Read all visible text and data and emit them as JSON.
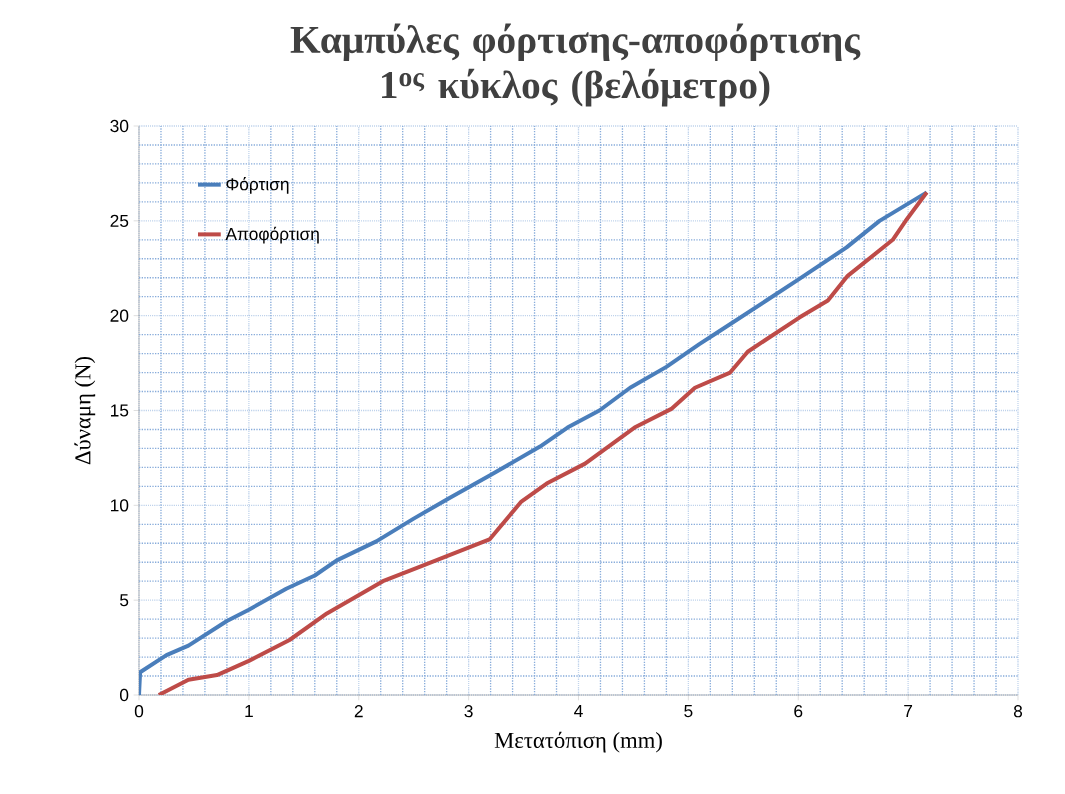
{
  "chart_data": {
    "type": "line",
    "title": "Καμπύλες φόρτισης-αποφόρτισης 1$^{ος}$ κύκλος (βελόμετρο)",
    "xlabel": "Μετατόπιση (mm)",
    "ylabel": "Δύναμη (N)",
    "xlim": [
      0,
      8
    ],
    "ylim": [
      0,
      30
    ],
    "xticks": [
      0,
      {
        "value": 0.2,
        "label": null
      },
      {
        "value": 0.4,
        "label": null
      },
      {
        "value": 0.6,
        "label": null
      },
      {
        "value": 0.8,
        "label": null
      },
      1,
      {
        "value": 1.2,
        "label": null
      },
      {
        "value": 1.4,
        "label": null
      },
      {
        "value": 1.6,
        "label": null
      },
      {
        "value": 1.8,
        "label": null
      },
      2,
      {
        "value": 2.2,
        "label": null
      },
      {
        "value": 2.4,
        "label": null
      },
      {
        "value": 2.6,
        "label": null
      },
      {
        "value": 2.8,
        "label": null
      },
      3,
      {
        "value": 3.2,
        "label": null
      },
      {
        "value": 3.4,
        "label": null
      },
      {
        "value": 3.6,
        "label": null
      },
      {
        "value": 3.8,
        "label": null
      },
      4,
      {
        "value": 4.2,
        "label": null
      },
      {
        "value": 4.4,
        "label": null
      },
      {
        "value": 4.6,
        "label": null
      },
      {
        "value": 4.8,
        "label": null
      },
      5,
      {
        "value": 5.2,
        "label": null
      },
      {
        "value": 5.4,
        "label": null
      },
      {
        "value": 5.6,
        "label": null
      },
      {
        "value": 5.8,
        "label": null
      },
      6,
      {
        "value": 6.2,
        "label": null
      },
      {
        "value": 6.4,
        "label": null
      },
      {
        "value": 6.6,
        "label": null
      },
      {
        "value": 6.8,
        "label": null
      },
      7,
      {
        "value": 7.2,
        "label": null
      },
      {
        "value": 7.4,
        "label": null
      },
      {
        "value": 7.6,
        "label": null
      },
      {
        "value": 7.8,
        "label": null
      },
      8
    ],
    "yticks": [
      0,
      {
        "value": 1,
        "label": null
      },
      {
        "value": 2,
        "label": null
      },
      {
        "value": 3,
        "label": null
      },
      {
        "value": 4,
        "label": null
      },
      5,
      {
        "value": 6,
        "label": null
      },
      {
        "value": 7,
        "label": null
      },
      {
        "value": 8,
        "label": null
      },
      {
        "value": 9,
        "label": null
      },
      10,
      {
        "value": 11,
        "label": null
      },
      {
        "value": 12,
        "label": null
      },
      {
        "value": 13,
        "label": null
      },
      {
        "value": 14,
        "label": null
      },
      15,
      {
        "value": 16,
        "label": null
      },
      {
        "value": 17,
        "label": null
      },
      {
        "value": 18,
        "label": null
      },
      {
        "value": 19,
        "label": null
      },
      20,
      {
        "value": 21,
        "label": null
      },
      {
        "value": 22,
        "label": null
      },
      {
        "value": 23,
        "label": null
      },
      {
        "value": 24,
        "label": null
      },
      25,
      {
        "value": 26,
        "label": null
      },
      {
        "value": 27,
        "label": null
      },
      {
        "value": 28,
        "label": null
      },
      {
        "value": 29,
        "label": null
      },
      30
    ],
    "grid": true,
    "legend": "top left",
    "marker": "none",
    "line_style": "solid",
    "series": [
      {
        "name": "Φόρτιση",
        "color": "#4a7ebb",
        "x": [
          0,
          0.01,
          0.25,
          0.45,
          0.8,
          1.0,
          1.34,
          1.6,
          1.8,
          2.16,
          2.5,
          2.83,
          3.2,
          3.65,
          3.9,
          4.19,
          4.47,
          4.8,
          5.1,
          5.26,
          5.71,
          6.0,
          6.44,
          6.74,
          7.17
        ],
        "values": [
          0,
          1.2,
          2.1,
          2.6,
          3.9,
          4.5,
          5.6,
          6.3,
          7.1,
          8.1,
          9.3,
          10.4,
          11.6,
          13.1,
          14.1,
          15.0,
          16.2,
          17.3,
          18.5,
          19.1,
          20.8,
          21.9,
          23.6,
          25.0,
          26.5
        ]
      },
      {
        "name": "Αποφόρτιση",
        "color": "#be4b48",
        "x": [
          0.18,
          0.45,
          0.71,
          1.0,
          1.37,
          1.71,
          2.22,
          2.53,
          3.19,
          3.48,
          3.71,
          4.06,
          4.51,
          4.85,
          5.06,
          5.38,
          5.54,
          6.01,
          6.27,
          6.45,
          6.86,
          6.99,
          7.17
        ],
        "values": [
          0,
          0.8,
          1.05,
          1.8,
          2.9,
          4.3,
          6.0,
          6.7,
          8.2,
          10.2,
          11.15,
          12.2,
          14.1,
          15.1,
          16.2,
          17.0,
          18.1,
          19.9,
          20.8,
          22.1,
          24.0,
          25.1,
          26.5
        ]
      }
    ]
  }
}
